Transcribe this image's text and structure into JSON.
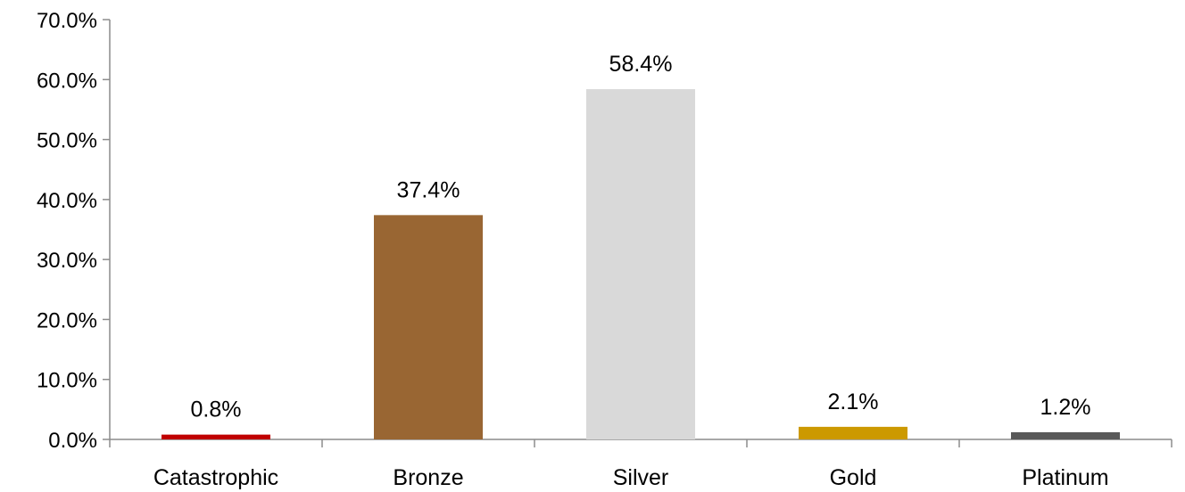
{
  "chart_data": {
    "type": "bar",
    "title": "",
    "xlabel": "",
    "ylabel": "",
    "categories": [
      "Catastrophic",
      "Bronze",
      "Silver",
      "Gold",
      "Platinum"
    ],
    "values": [
      0.8,
      37.4,
      58.4,
      2.1,
      1.2
    ],
    "data_labels": [
      "0.8%",
      "37.4%",
      "58.4%",
      "2.1%",
      "1.2%"
    ],
    "bar_colors": [
      "#c00000",
      "#996633",
      "#d9d9d9",
      "#cc9900",
      "#595959"
    ],
    "ylim": [
      0,
      70
    ],
    "y_ticks": [
      0,
      10,
      20,
      30,
      40,
      50,
      60,
      70
    ],
    "y_tick_labels": [
      "0.0%",
      "10.0%",
      "20.0%",
      "30.0%",
      "40.0%",
      "50.0%",
      "60.0%",
      "70.0%"
    ],
    "grid": false,
    "legend": "none",
    "axis_color": "#8c8c8c"
  }
}
